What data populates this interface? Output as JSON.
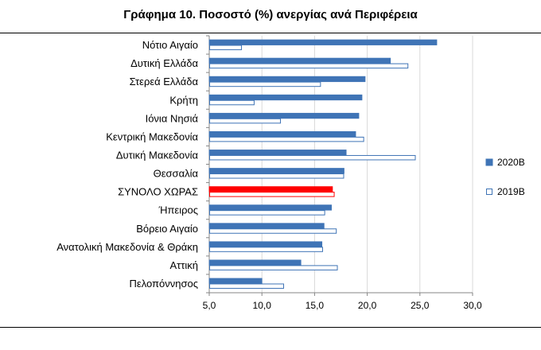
{
  "chart_data": {
    "type": "bar",
    "orientation": "horizontal",
    "title": "Γράφημα 10. Ποσοστό (%) ανεργίας ανά Περιφέρεια",
    "categories": [
      "Νότιο Αιγαίο",
      "Δυτική Ελλάδα",
      "Στερεά Ελλάδα",
      "Κρήτη",
      "Ιόνια Νησιά",
      "Κεντρική Μακεδονία",
      "Δυτική Μακεδονία",
      "Θεσσαλία",
      "ΣΥΝΟΛΟ ΧΩΡΑΣ",
      "Ήπειρος",
      "Βόρειο Αιγαίο",
      "Ανατολική Μακεδονία & Θράκη",
      "Αττική",
      "Πελοπόννησος"
    ],
    "series": [
      {
        "name": "2020Β",
        "values": [
          26.6,
          22.2,
          19.8,
          19.5,
          19.2,
          18.9,
          18.0,
          17.8,
          16.7,
          16.6,
          15.9,
          15.7,
          13.7,
          10.0
        ],
        "color": "#3f74b6",
        "fill": "solid"
      },
      {
        "name": "2019Β",
        "values": [
          8.1,
          23.9,
          15.6,
          9.3,
          11.8,
          19.7,
          24.6,
          17.8,
          16.9,
          16.0,
          17.1,
          15.8,
          17.2,
          12.1
        ],
        "color": "#3f74b6",
        "fill": "outline"
      }
    ],
    "highlight": {
      "category": "ΣΥΝΟΛΟ ΧΩΡΑΣ",
      "color": "#ff0000"
    },
    "xlim": [
      5.0,
      30.0
    ],
    "xticks": [
      "5,0",
      "10,0",
      "15,0",
      "20,0",
      "25,0",
      "30,0"
    ],
    "xtick_values": [
      5,
      10,
      15,
      20,
      25,
      30
    ],
    "grid": true,
    "legend_position": "right"
  }
}
